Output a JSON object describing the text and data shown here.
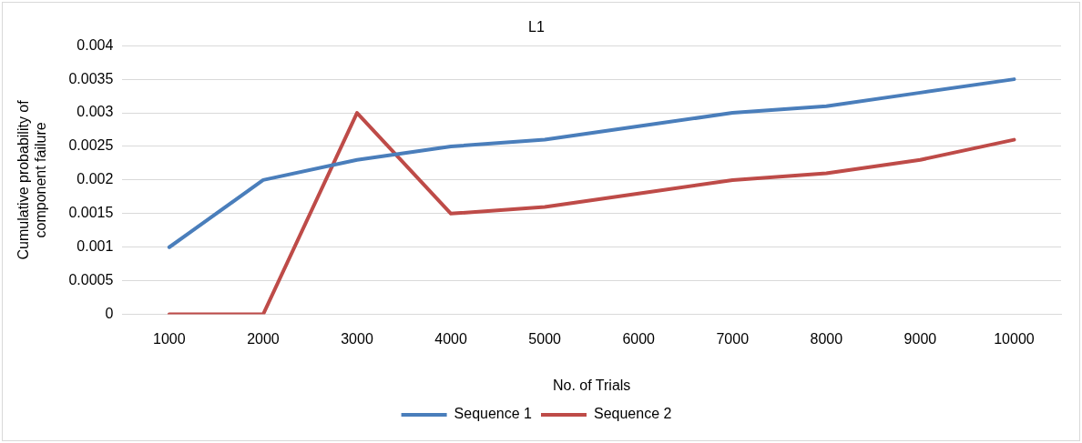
{
  "chart_data": {
    "type": "line",
    "title": "L1",
    "xlabel": "No. of Trials",
    "ylabel": "Cumulative probability of component failure",
    "categories": [
      "1000",
      "2000",
      "3000",
      "4000",
      "5000",
      "6000",
      "7000",
      "8000",
      "9000",
      "10000"
    ],
    "series": [
      {
        "name": "Sequence 1",
        "color": "#4a7ebb",
        "values": [
          0.001,
          0.002,
          0.0023,
          0.0025,
          0.0026,
          0.0028,
          0.003,
          0.0031,
          0.0033,
          0.0035
        ]
      },
      {
        "name": "Sequence 2",
        "color": "#be4b48",
        "values": [
          0,
          0,
          0.003,
          0.0015,
          0.0016,
          0.0018,
          0.002,
          0.0021,
          0.0023,
          0.0026
        ]
      }
    ],
    "ylim": [
      0,
      0.004
    ],
    "yticks": [
      0,
      0.0005,
      0.001,
      0.0015,
      0.002,
      0.0025,
      0.003,
      0.0035,
      0.004
    ],
    "grid": "y",
    "legend": "bottom",
    "marker": "none",
    "line_style": "solid"
  }
}
